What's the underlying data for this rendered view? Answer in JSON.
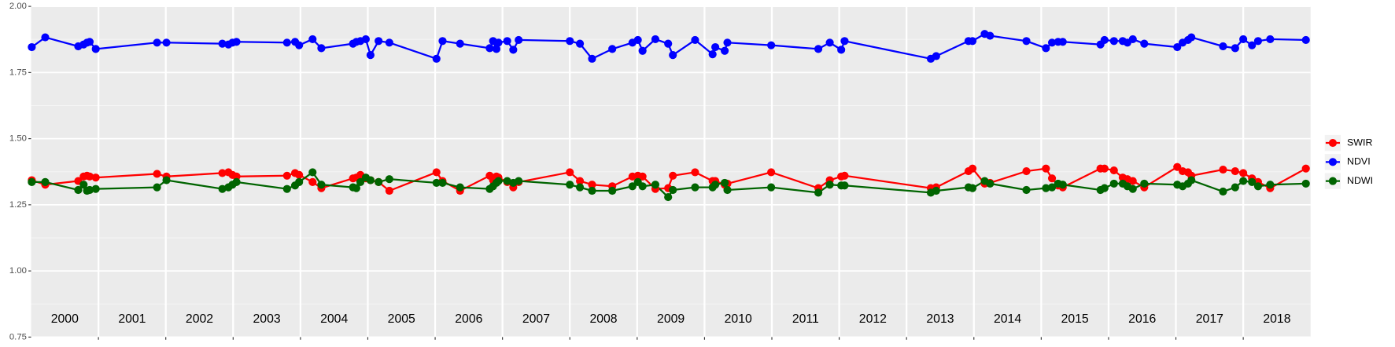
{
  "chart_data": {
    "type": "line",
    "xlim": [
      2000,
      2019
    ],
    "xticks": [
      2001,
      2002,
      2003,
      2004,
      2005,
      2006,
      2007,
      2008,
      2009,
      2010,
      2011,
      2012,
      2013,
      2014,
      2015,
      2016,
      2017,
      2018
    ],
    "year_labels": [
      2000,
      2001,
      2002,
      2003,
      2004,
      2005,
      2006,
      2007,
      2008,
      2009,
      2010,
      2011,
      2012,
      2013,
      2014,
      2015,
      2016,
      2017,
      2018
    ],
    "ylim": [
      0.75,
      2.0
    ],
    "yticks": [
      0.75,
      {
        "value": 1.0,
        "label": "1.00"
      },
      1.25,
      {
        "value": 1.5,
        "label": "1.50"
      },
      1.75,
      {
        "value": 2.0,
        "label": "2.00"
      }
    ],
    "grid": true,
    "legend": "right",
    "x": [
      2000.01,
      2000.21,
      2000.7,
      2000.78,
      2000.83,
      2000.87,
      2000.96,
      2001.87,
      2002.01,
      2002.84,
      2002.93,
      2002.99,
      2003.05,
      2003.8,
      2003.92,
      2003.98,
      2004.18,
      2004.31,
      2004.78,
      2004.83,
      2004.89,
      2004.97,
      2005.04,
      2005.16,
      2005.32,
      2006.02,
      2006.11,
      2006.37,
      2006.81,
      2006.86,
      2006.91,
      2006.94,
      2007.07,
      2007.16,
      2007.24,
      2008.0,
      2008.15,
      2008.33,
      2008.63,
      2008.93,
      2009.01,
      2009.08,
      2009.27,
      2009.46,
      2009.53,
      2009.86,
      2010.12,
      2010.16,
      2010.3,
      2010.34,
      2010.99,
      2011.69,
      2011.86,
      2012.03,
      2012.08,
      2013.36,
      2013.44,
      2013.92,
      2013.98,
      2014.16,
      2014.24,
      2014.78,
      2015.07,
      2015.16,
      2015.25,
      2015.32,
      2015.88,
      2015.94,
      2016.08,
      2016.21,
      2016.28,
      2016.36,
      2016.53,
      2017.02,
      2017.1,
      2017.18,
      2017.23,
      2017.7,
      2017.88,
      2018.0,
      2018.13,
      2018.22,
      2018.4,
      2018.93
    ],
    "series": [
      {
        "name": "SWIR",
        "color": "#ff0000",
        "values": [
          1.343,
          1.326,
          1.34,
          1.357,
          1.36,
          1.357,
          1.353,
          1.367,
          1.357,
          1.37,
          1.373,
          1.363,
          1.357,
          1.36,
          1.37,
          1.363,
          1.336,
          1.313,
          1.35,
          1.353,
          1.363,
          1.35,
          1.343,
          1.336,
          1.303,
          1.373,
          1.34,
          1.303,
          1.36,
          1.343,
          1.357,
          1.353,
          1.336,
          1.316,
          1.336,
          1.373,
          1.34,
          1.326,
          1.32,
          1.357,
          1.36,
          1.357,
          1.31,
          1.313,
          1.36,
          1.373,
          1.34,
          1.34,
          1.326,
          1.33,
          1.373,
          1.313,
          1.343,
          1.357,
          1.36,
          1.313,
          1.316,
          1.377,
          1.387,
          1.33,
          1.333,
          1.377,
          1.387,
          1.35,
          1.323,
          1.316,
          1.387,
          1.387,
          1.38,
          1.353,
          1.347,
          1.34,
          1.316,
          1.393,
          1.377,
          1.373,
          1.36,
          1.383,
          1.377,
          1.37,
          1.35,
          1.336,
          1.313,
          1.387
        ]
      },
      {
        "name": "NDVI",
        "color": "#0000ff",
        "values": [
          1.846,
          1.883,
          1.849,
          1.856,
          1.863,
          1.866,
          1.839,
          1.863,
          1.863,
          1.859,
          1.856,
          1.863,
          1.866,
          1.863,
          1.866,
          1.853,
          1.876,
          1.842,
          1.859,
          1.866,
          1.869,
          1.876,
          1.816,
          1.869,
          1.863,
          1.802,
          1.869,
          1.859,
          1.842,
          1.869,
          1.839,
          1.863,
          1.869,
          1.836,
          1.873,
          1.869,
          1.859,
          1.802,
          1.839,
          1.863,
          1.873,
          1.832,
          1.876,
          1.859,
          1.816,
          1.873,
          1.819,
          1.846,
          1.832,
          1.863,
          1.853,
          1.839,
          1.863,
          1.836,
          1.869,
          1.802,
          1.812,
          1.869,
          1.869,
          1.896,
          1.889,
          1.869,
          1.842,
          1.863,
          1.866,
          1.866,
          1.856,
          1.873,
          1.869,
          1.869,
          1.863,
          1.876,
          1.859,
          1.846,
          1.863,
          1.873,
          1.883,
          1.849,
          1.842,
          1.876,
          1.853,
          1.869,
          1.876,
          1.873
        ]
      },
      {
        "name": "NDWI",
        "color": "#006400",
        "values": [
          1.336,
          1.336,
          1.306,
          1.326,
          1.303,
          1.306,
          1.31,
          1.316,
          1.343,
          1.31,
          1.316,
          1.326,
          1.336,
          1.31,
          1.323,
          1.336,
          1.373,
          1.326,
          1.316,
          1.313,
          1.336,
          1.353,
          1.343,
          1.336,
          1.347,
          1.333,
          1.333,
          1.316,
          1.31,
          1.32,
          1.333,
          1.34,
          1.34,
          1.333,
          1.34,
          1.326,
          1.316,
          1.303,
          1.303,
          1.32,
          1.336,
          1.32,
          1.326,
          1.279,
          1.306,
          1.316,
          1.316,
          1.326,
          1.333,
          1.306,
          1.316,
          1.296,
          1.326,
          1.323,
          1.323,
          1.296,
          1.303,
          1.316,
          1.313,
          1.34,
          1.33,
          1.306,
          1.313,
          1.316,
          1.33,
          1.326,
          1.306,
          1.313,
          1.33,
          1.33,
          1.32,
          1.31,
          1.33,
          1.326,
          1.32,
          1.33,
          1.343,
          1.3,
          1.316,
          1.34,
          1.336,
          1.32,
          1.326,
          1.33
        ]
      }
    ]
  }
}
